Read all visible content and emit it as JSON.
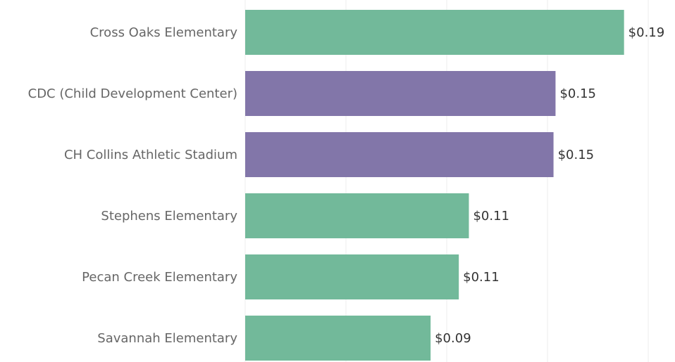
{
  "chart_data": {
    "type": "bar",
    "orientation": "horizontal",
    "categories": [
      "Cross Oaks Elementary",
      "CDC (Child Development Center)",
      "CH Collins Athletic Stadium",
      "Stephens Elementary",
      "Pecan Creek Elementary",
      "Savannah Elementary"
    ],
    "values": [
      0.188,
      0.154,
      0.153,
      0.111,
      0.106,
      0.092
    ],
    "value_labels": [
      "$0.19",
      "$0.15",
      "$0.15",
      "$0.11",
      "$0.11",
      "$0.09"
    ],
    "colors": [
      "#72b99a",
      "#8276a9",
      "#8276a9",
      "#72b99a",
      "#72b99a",
      "#72b99a"
    ],
    "xlim": [
      0,
      0.2
    ],
    "xticks": [
      0,
      0.05,
      0.1,
      0.15,
      0.2
    ],
    "grid": true
  }
}
